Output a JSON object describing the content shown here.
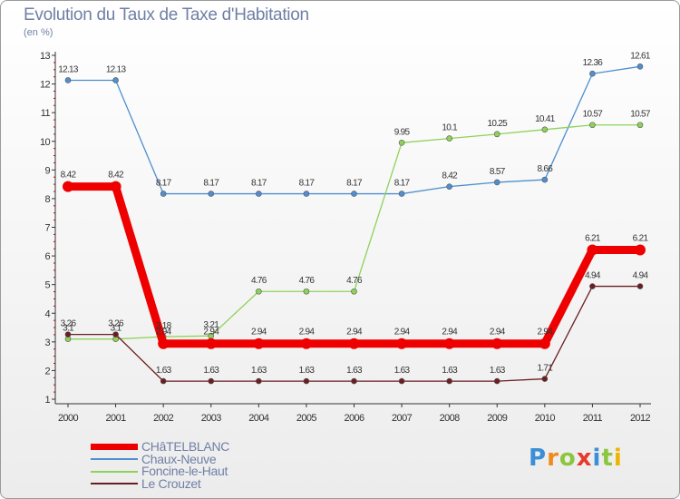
{
  "title": "Evolution du Taux de Taxe d'Habitation",
  "subtitle": "(en %)",
  "logo": {
    "letters": [
      {
        "ch": "P",
        "color": "#3b8fd6"
      },
      {
        "ch": "r",
        "color": "#f08a1c"
      },
      {
        "ch": "o",
        "color": "#8cc63f"
      },
      {
        "ch": "x",
        "color": "#e63a2e"
      },
      {
        "ch": "i",
        "color": "#3b8fd6"
      },
      {
        "ch": "t",
        "color": "#8cc63f"
      },
      {
        "ch": "i",
        "color": "#f0b400"
      }
    ]
  },
  "chart_data": {
    "type": "line",
    "title": "Evolution du Taux de Taxe d'Habitation",
    "ylabel": "(en %)",
    "xlabel": "",
    "x": [
      "2000",
      "2001",
      "2002",
      "2003",
      "2004",
      "2005",
      "2006",
      "2007",
      "2008",
      "2009",
      "2010",
      "2011",
      "2012"
    ],
    "ylim": [
      1,
      13
    ],
    "yticks": [
      1,
      2,
      3,
      4,
      5,
      6,
      7,
      8,
      9,
      10,
      11,
      12,
      13
    ],
    "grid": false,
    "legend_position": "bottom-left",
    "series": [
      {
        "name": "CHâTELBLANC",
        "color": "#ee0000",
        "thick": true,
        "values": [
          8.42,
          8.42,
          2.94,
          2.94,
          2.94,
          2.94,
          2.94,
          2.94,
          2.94,
          2.94,
          2.94,
          6.21,
          6.21
        ]
      },
      {
        "name": "Chaux-Neuve",
        "color": "#4f8fcf",
        "thick": false,
        "values": [
          12.13,
          12.13,
          8.17,
          8.17,
          8.17,
          8.17,
          8.17,
          8.17,
          8.42,
          8.57,
          8.66,
          12.36,
          12.61
        ]
      },
      {
        "name": "Foncine-le-Haut",
        "color": "#8ed25a",
        "thick": false,
        "values": [
          3.1,
          3.1,
          3.18,
          3.21,
          4.76,
          4.76,
          4.76,
          9.95,
          10.1,
          10.25,
          10.41,
          10.57,
          10.57
        ]
      },
      {
        "name": "Le Crouzet",
        "color": "#6b1e22",
        "thick": false,
        "values": [
          3.26,
          3.26,
          1.63,
          1.63,
          1.63,
          1.63,
          1.63,
          1.63,
          1.63,
          1.63,
          1.71,
          4.94,
          4.94
        ]
      }
    ],
    "labels": [
      {
        "series": 0,
        "text": [
          "8.42",
          "8.42",
          "2.94",
          "2.94",
          "2.94",
          "2.94",
          "2.94",
          "2.94",
          "2.94",
          "2.94",
          "2.94",
          "6.21",
          "6.21"
        ]
      },
      {
        "series": 1,
        "text": [
          "12.13",
          "12.13",
          "8.17",
          "8.17",
          "8.17",
          "8.17",
          "8.17",
          "8.17",
          "8.42",
          "8.57",
          "8.66",
          "12.36",
          "12.61"
        ]
      },
      {
        "series": 2,
        "text": [
          "3.1",
          "3.1",
          "3.18",
          "3.21",
          "4.76",
          "4.76",
          "4.76",
          "9.95",
          "10.1",
          "10.25",
          "10.41",
          "10.57",
          "10.57"
        ]
      },
      {
        "series": 3,
        "text": [
          "3.26",
          "3.26",
          "1.63",
          "1.63",
          "1.63",
          "1.63",
          "1.63",
          "1.63",
          "1.63",
          "1.63",
          "1.71",
          "4.94",
          "4.94"
        ]
      }
    ]
  }
}
